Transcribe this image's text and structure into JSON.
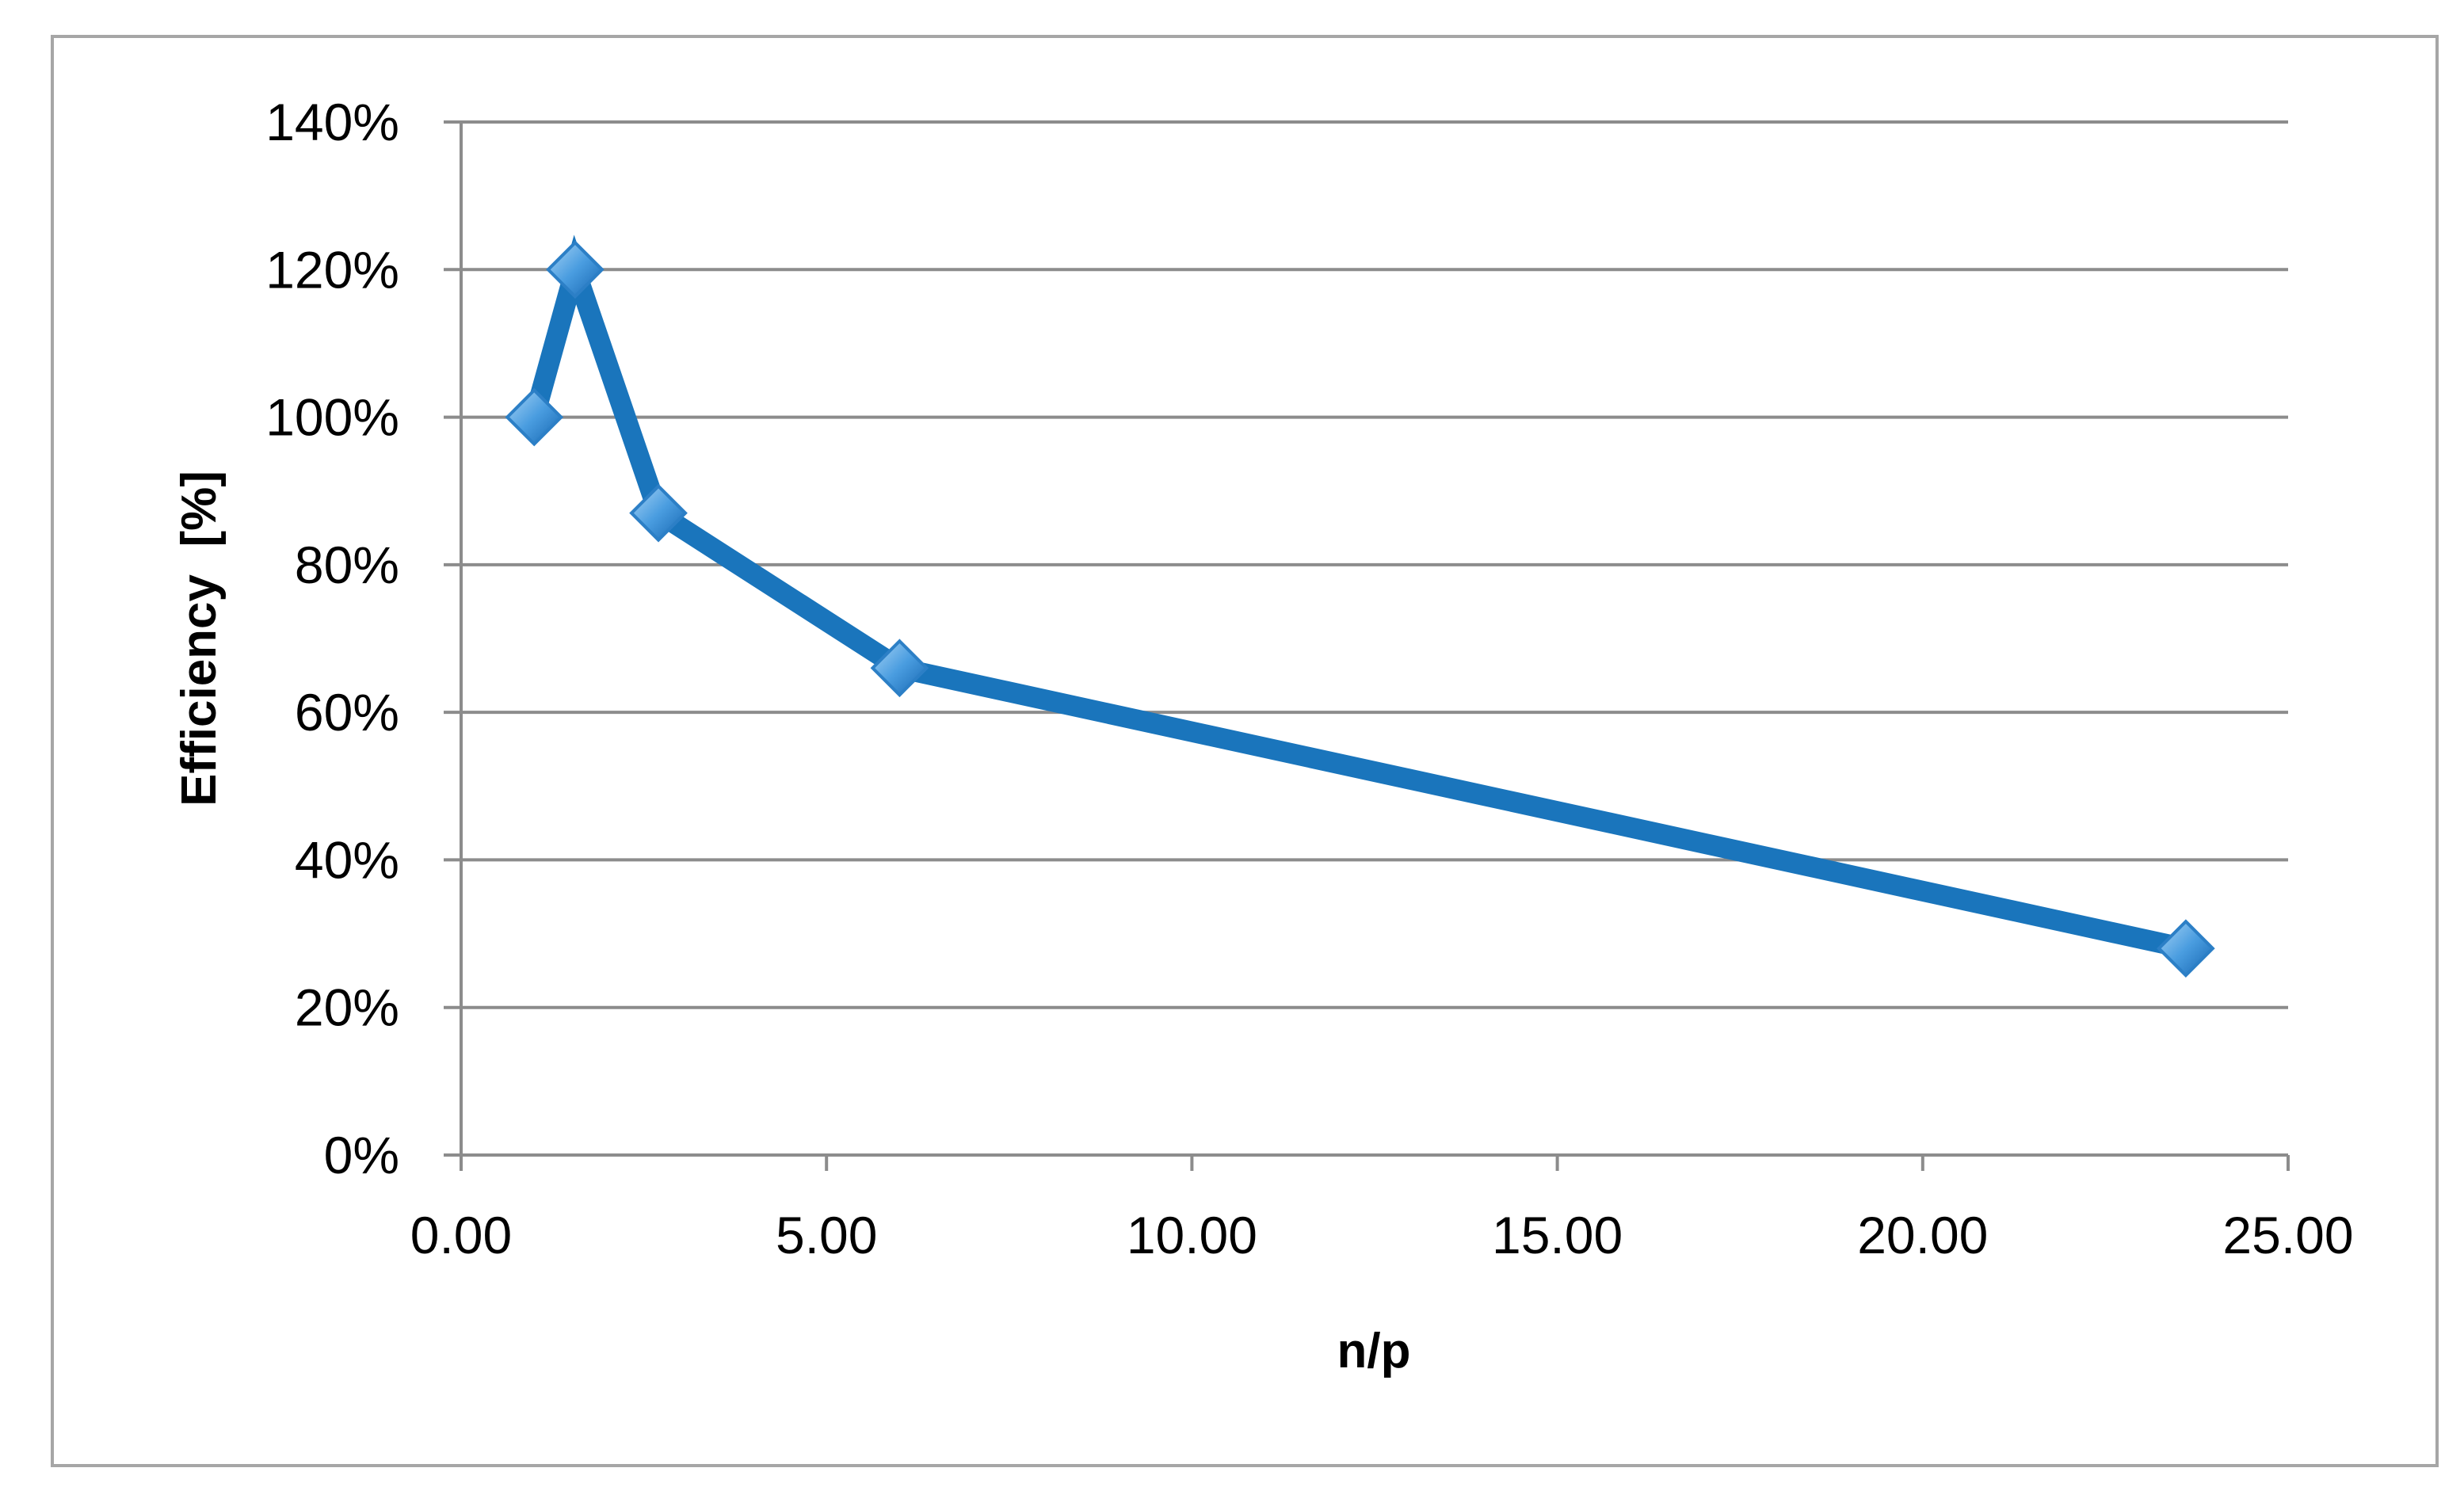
{
  "chart_data": {
    "type": "line",
    "title": "",
    "xlabel": "n/p",
    "ylabel": "Efficiency  [%]",
    "x_ticks": [
      "0.00",
      "5.00",
      "10.00",
      "15.00",
      "20.00",
      "25.00"
    ],
    "y_ticks": [
      "0%",
      "20%",
      "40%",
      "60%",
      "80%",
      "100%",
      "120%",
      "140%"
    ],
    "xlim": [
      0,
      25
    ],
    "ylim": [
      0,
      140
    ],
    "grid": true,
    "legend": "none",
    "line_color": "#1a75bc",
    "marker": "diamond",
    "series": [
      {
        "x": [
          1.0,
          1.56,
          2.7,
          6.0,
          23.6
        ],
        "y": [
          100,
          120,
          87,
          66,
          28
        ]
      }
    ]
  }
}
